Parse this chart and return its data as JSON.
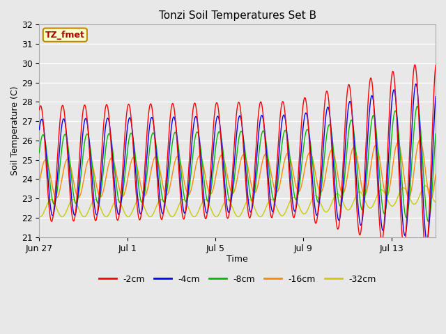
{
  "title": "Tonzi Soil Temperatures Set B",
  "xlabel": "Time",
  "ylabel": "Soil Temperature (C)",
  "ylim": [
    21.0,
    32.0
  ],
  "yticks": [
    21.0,
    22.0,
    23.0,
    24.0,
    25.0,
    26.0,
    27.0,
    28.0,
    29.0,
    30.0,
    31.0,
    32.0
  ],
  "annotation_label": "TZ_fmet",
  "annotation_box_color": "#ffffcc",
  "annotation_border_color": "#bb8800",
  "colors": {
    "-2cm": "#ff0000",
    "-4cm": "#0000ff",
    "-8cm": "#00bb00",
    "-16cm": "#ff8800",
    "-32cm": "#cccc00"
  },
  "line_width": 1.0,
  "background_color": "#e8e8e8",
  "plot_bg_color": "#e8e8e8",
  "grid_color": "#ffffff",
  "n_days": 18,
  "samples_per_day": 96,
  "xtick_positions": [
    0,
    4,
    8,
    12,
    16
  ],
  "xtick_labels": [
    "Jun 27",
    "Jul 1",
    "Jul 5",
    "Jul 9",
    "Jul 13"
  ],
  "legend_labels": [
    "-2cm",
    "-4cm",
    "-8cm",
    "-16cm",
    "-32cm"
  ]
}
